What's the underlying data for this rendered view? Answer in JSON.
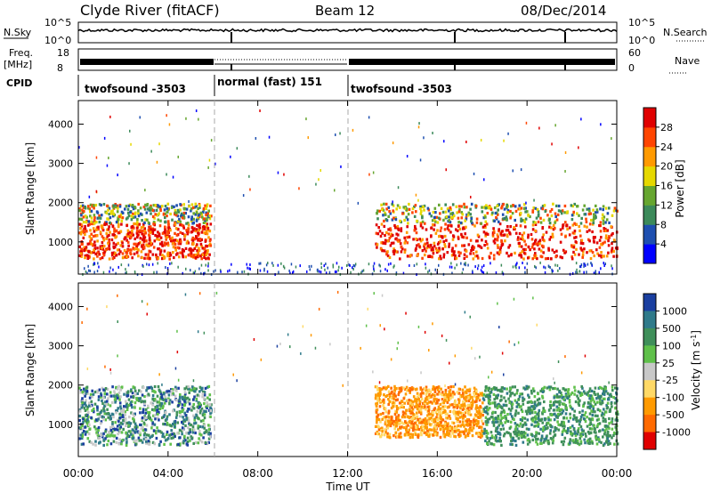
{
  "header": {
    "station": "Clyde River (fitACF)",
    "beam": "Beam 12",
    "date": "08/Dec/2014"
  },
  "status_panels": {
    "noise": {
      "left_label": "N.Sky",
      "right_label": "N.Search",
      "left_ticks": [
        "10^5",
        "10^0"
      ],
      "right_ticks": [
        "10^5",
        "10^0"
      ]
    },
    "freq": {
      "left_label_1": "Freq.",
      "left_label_2": "[MHz]",
      "left_ticks": [
        "18",
        "8"
      ],
      "right_label": "Nave",
      "right_ticks": [
        "60",
        "0"
      ]
    },
    "cpid": {
      "label": "CPID",
      "segments": [
        {
          "name": "twofsound -3503",
          "start": "00:00",
          "end": "06:00"
        },
        {
          "name": "normal (fast) 151",
          "start": "06:00",
          "end": "12:00"
        },
        {
          "name": "twofsound -3503",
          "start": "12:00",
          "end": "24:00"
        }
      ]
    }
  },
  "chart_data": [
    {
      "type": "heatmap",
      "panel": "power",
      "ylabel": "Slant Range [km]",
      "yticks": [
        "1000",
        "2000",
        "3000",
        "4000"
      ],
      "ylim": [
        180,
        4600
      ],
      "xlim": [
        "00:00",
        "24:00"
      ],
      "colorbar_label": "Power [dB]",
      "colorbar_ticks": [
        "4",
        "8",
        "12",
        "16",
        "20",
        "24",
        "28"
      ],
      "colorbar_colors": [
        "#0000ff",
        "#1e4fb0",
        "#3c8a5a",
        "#66a630",
        "#e6d800",
        "#ff9a00",
        "#ff4500",
        "#e00000"
      ],
      "echo_regions": [
        {
          "x0": 0.0,
          "x1": 5.9,
          "r0": 600,
          "r1": 2000,
          "level": "high"
        },
        {
          "x0": 13.2,
          "x1": 24.0,
          "r0": 600,
          "r1": 2000,
          "level": "high"
        },
        {
          "x0": 0.0,
          "x1": 24.0,
          "r0": 200,
          "r1": 500,
          "level": "low"
        }
      ]
    },
    {
      "type": "heatmap",
      "panel": "velocity",
      "xlabel": "Time UT",
      "xticks": [
        "00:00",
        "04:00",
        "08:00",
        "12:00",
        "16:00",
        "20:00",
        "00:00"
      ],
      "ylabel": "Slant Range [km]",
      "yticks": [
        "1000",
        "2000",
        "3000",
        "4000"
      ],
      "ylim": [
        180,
        4600
      ],
      "xlim": [
        "00:00",
        "24:00"
      ],
      "colorbar_label": "Velocity [m s^-1]",
      "colorbar_ticks": [
        "1000",
        "500",
        "100",
        "25",
        "-25",
        "-100",
        "-500",
        "-1000"
      ],
      "colorbar_colors": [
        "#1a3fa0",
        "#2f7a8a",
        "#3f8f5a",
        "#5fc04a",
        "#c8c8c8",
        "#ffd966",
        "#ff9a00",
        "#ff6a00",
        "#e00000"
      ],
      "echo_regions": [
        {
          "x0": 0.0,
          "x1": 5.9,
          "r0": 500,
          "r1": 2000,
          "level": "negative-positive"
        },
        {
          "x0": 13.2,
          "x1": 18.0,
          "r0": 700,
          "r1": 2000,
          "level": "away"
        },
        {
          "x0": 18.0,
          "x1": 24.0,
          "r0": 500,
          "r1": 2000,
          "level": "toward"
        }
      ]
    }
  ]
}
